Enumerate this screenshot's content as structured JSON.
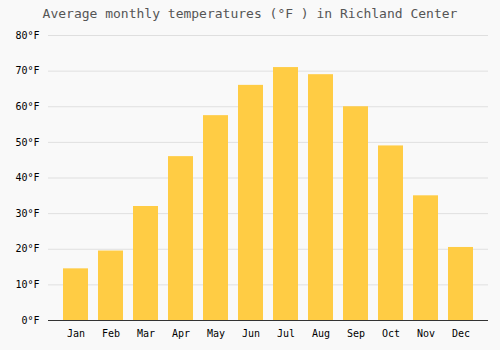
{
  "chart_data": {
    "type": "bar",
    "title": "Average monthly temperatures (°F ) in Richland Center",
    "categories": [
      "Jan",
      "Feb",
      "Mar",
      "Apr",
      "May",
      "Jun",
      "Jul",
      "Aug",
      "Sep",
      "Oct",
      "Nov",
      "Dec"
    ],
    "values": [
      14.5,
      19.5,
      32,
      46,
      57.5,
      66,
      71,
      69,
      60,
      49,
      35,
      20.5
    ],
    "color": "#FFCC44",
    "ylim": [
      0,
      80
    ],
    "yticks": [
      {
        "value": 0,
        "label": "0°F"
      },
      {
        "value": 10,
        "label": "10°F"
      },
      {
        "value": 20,
        "label": "20°F"
      },
      {
        "value": 30,
        "label": "30°F"
      },
      {
        "value": 40,
        "label": "40°F"
      },
      {
        "value": 50,
        "label": "50°F"
      },
      {
        "value": 60,
        "label": "60°F"
      },
      {
        "value": 70,
        "label": "70°F"
      },
      {
        "value": 80,
        "label": "80°F"
      }
    ],
    "grid": true
  }
}
